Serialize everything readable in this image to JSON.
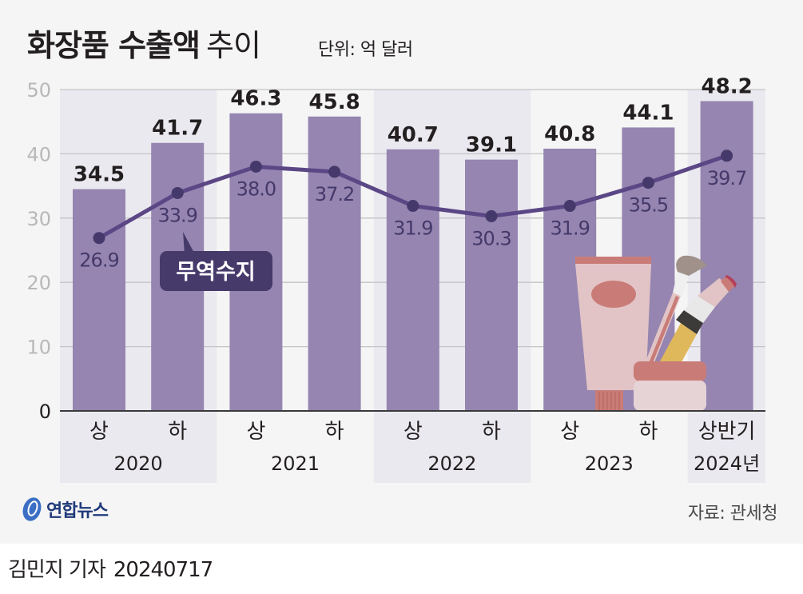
{
  "header": {
    "title_bold": "화장품 수출액",
    "title_light": "추이",
    "unit": "단위: 억 달러"
  },
  "chart_data": {
    "type": "bar",
    "title": "화장품 수출액 추이",
    "unit": "단위: 억 달러",
    "xlabel": "",
    "ylabel": "",
    "ylim": [
      0,
      50
    ],
    "yticks": [
      0,
      10,
      20,
      30,
      40,
      50
    ],
    "grid": true,
    "categories": [
      "상",
      "하",
      "상",
      "하",
      "상",
      "하",
      "상",
      "하",
      "상반기"
    ],
    "year_groups": [
      {
        "label": "2020",
        "span": 2,
        "shaded": true
      },
      {
        "label": "2021",
        "span": 2,
        "shaded": false
      },
      {
        "label": "2022",
        "span": 2,
        "shaded": true
      },
      {
        "label": "2023",
        "span": 2,
        "shaded": false
      },
      {
        "label": "2024년",
        "span": 1,
        "shaded": true
      }
    ],
    "series": [
      {
        "name": "수출액",
        "type": "bar",
        "color": "#9585b0",
        "values": [
          34.5,
          41.7,
          46.3,
          45.8,
          40.7,
          39.1,
          40.8,
          44.1,
          48.2
        ]
      },
      {
        "name": "무역수지",
        "type": "line",
        "color": "#5b4785",
        "marker_color": "#45396b",
        "values": [
          26.9,
          33.9,
          38.0,
          37.2,
          31.9,
          30.3,
          31.9,
          35.5,
          39.7
        ]
      }
    ],
    "annotations": [
      {
        "text": "무역수지",
        "points_to_index": 1,
        "series": "무역수지"
      }
    ]
  },
  "colors": {
    "background": "#f5f5f5",
    "band": "#ebe9f0",
    "bar": "#9585b0",
    "line": "#5b4785",
    "label_dark": "#231f20",
    "line_label": "#45396b"
  },
  "footer": {
    "logo_text": "연합뉴스",
    "source": "자료: 관세청",
    "reporter": "김민지 기자",
    "date": "20240717"
  }
}
